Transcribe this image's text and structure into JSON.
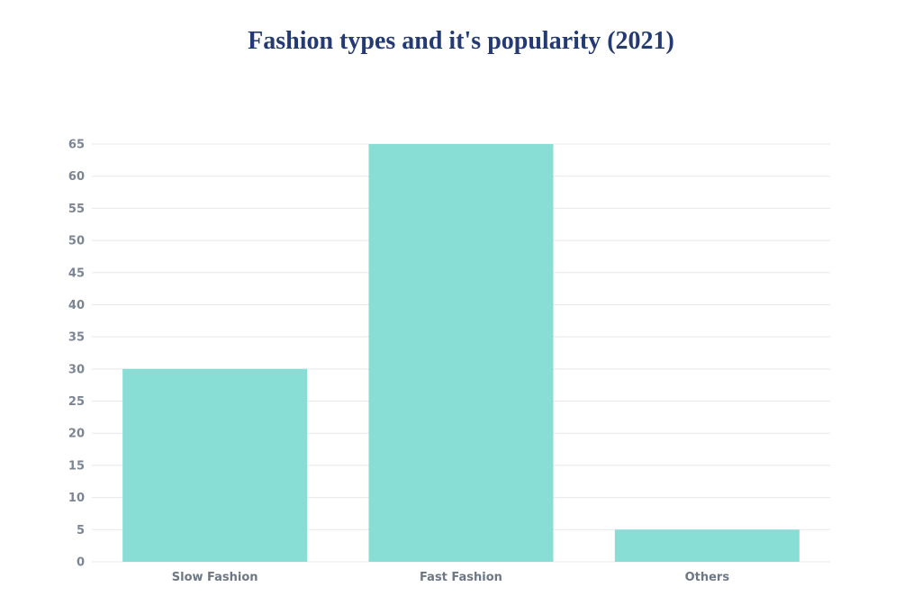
{
  "chart_data": {
    "type": "bar",
    "title": "Fashion types and it's popularity (2021)",
    "categories": [
      "Slow Fashion",
      "Fast Fashion",
      "Others"
    ],
    "values": [
      30,
      65,
      5
    ],
    "ylim": [
      0,
      65
    ],
    "yticks": [
      "0",
      "5",
      "10",
      "15",
      "20",
      "25",
      "30",
      "35",
      "40",
      "45",
      "50",
      "55",
      "60",
      "65"
    ],
    "xlabel": "",
    "ylabel": "",
    "grid": true,
    "legend": "none",
    "colors": {
      "bar": "#88ddd5",
      "grid": "#e6e8eb",
      "title": "#243a73",
      "tick": "#7b8593"
    }
  }
}
